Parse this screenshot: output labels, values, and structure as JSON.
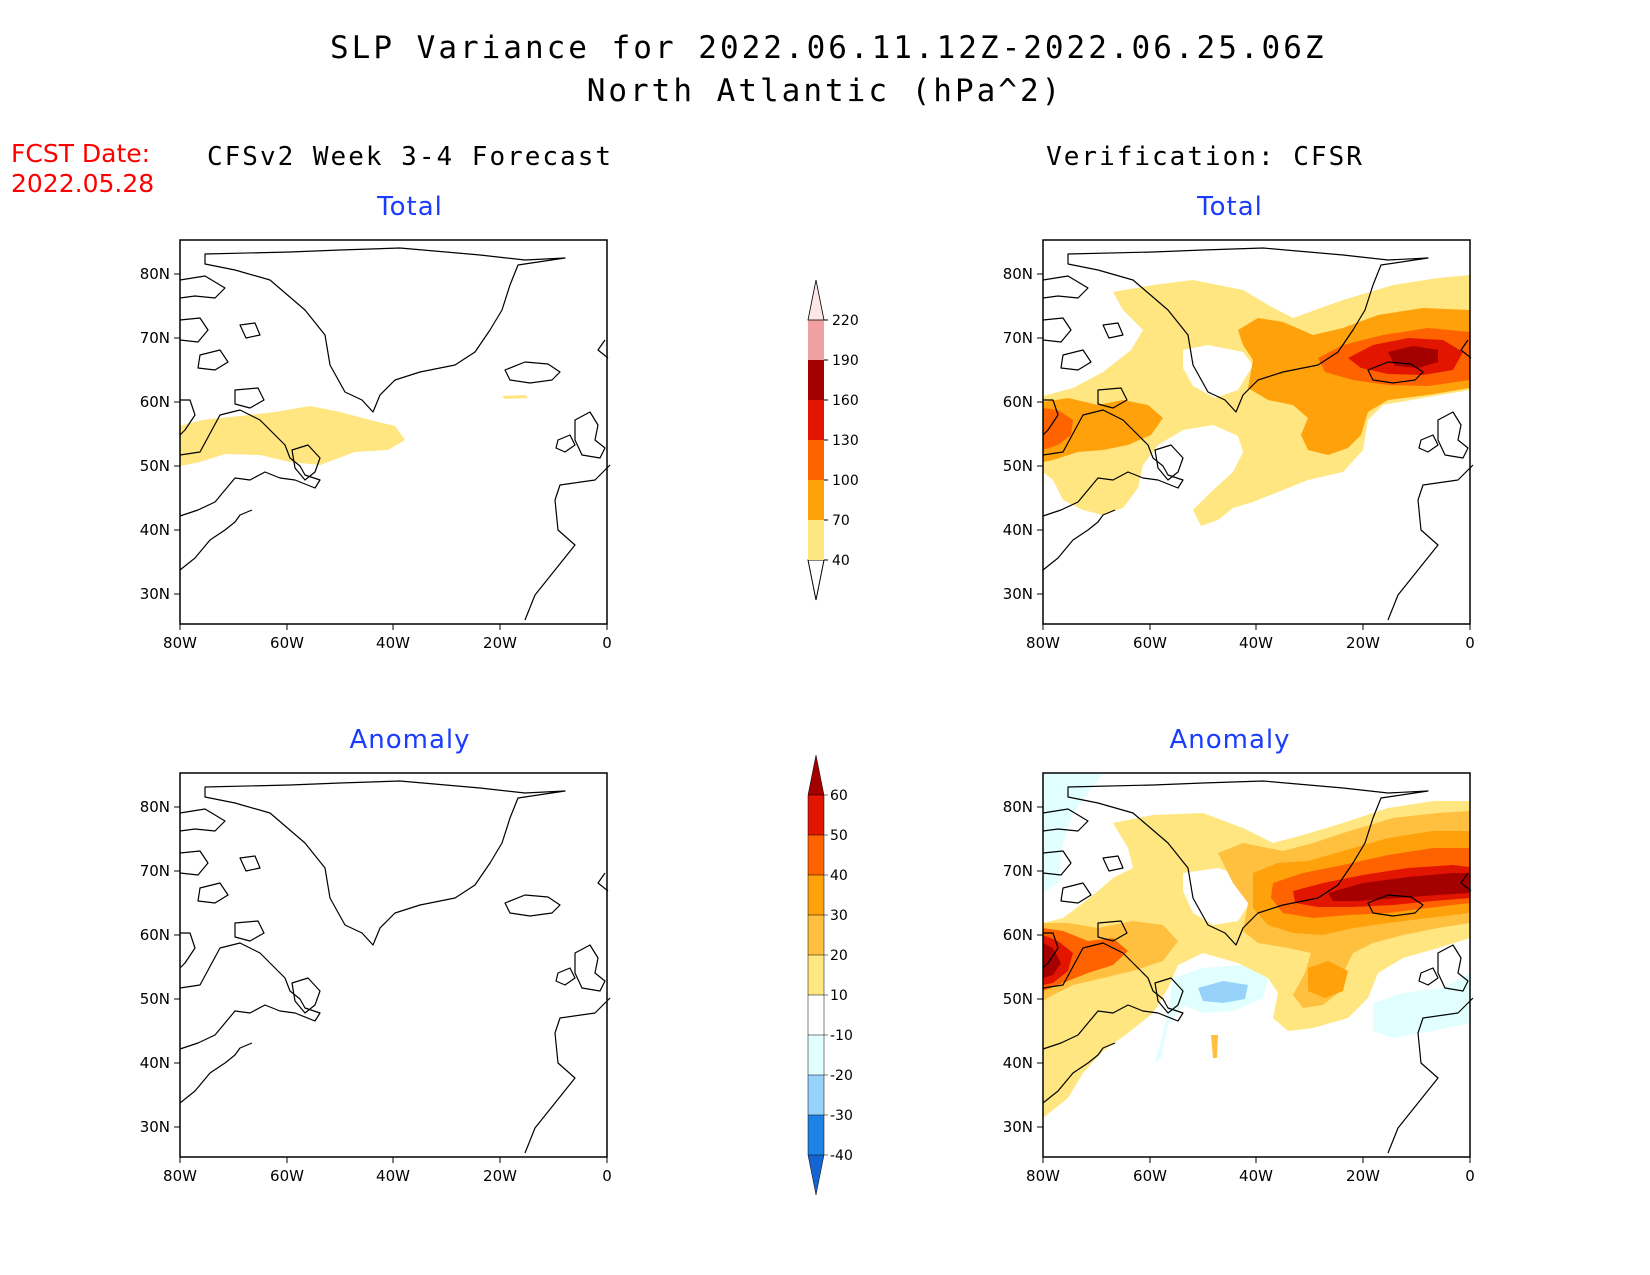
{
  "header": {
    "title_line1": "SLP Variance for 2022.06.11.12Z-2022.06.25.06Z",
    "title_line2": "North Atlantic (hPa^2)"
  },
  "fcst": {
    "label": "FCST Date:",
    "date": "2022.05.28"
  },
  "columns": {
    "left_title": "CFSv2 Week 3-4 Forecast",
    "right_title": "Verification: CFSR"
  },
  "panels": {
    "fc_total": "Total",
    "fc_anom": "Anomaly",
    "ver_total": "Total",
    "ver_anom": "Anomaly"
  },
  "axes": {
    "lon_labels": [
      "80W",
      "60W",
      "40W",
      "20W",
      "0"
    ],
    "lat_labels": [
      "80N",
      "70N",
      "60N",
      "50N",
      "40N",
      "30N"
    ]
  },
  "colorbar_total": {
    "levels": [
      "40",
      "70",
      "100",
      "130",
      "160",
      "190",
      "220"
    ],
    "colors": [
      "#ffe680",
      "#ffa10a",
      "#ff6300",
      "#e21500",
      "#a50000",
      "#f0a0a0",
      "#fde6e6"
    ]
  },
  "colorbar_anomaly": {
    "levels": [
      "-40",
      "-30",
      "-20",
      "-10",
      "10",
      "20",
      "30",
      "40",
      "50",
      "60"
    ],
    "colors": [
      "#1464d2",
      "#1e82e6",
      "#96d2fa",
      "#e1ffff",
      "#ffffff",
      "#ffe680",
      "#ffc040",
      "#ffa10a",
      "#ff6300",
      "#e21500",
      "#a50000"
    ]
  }
}
